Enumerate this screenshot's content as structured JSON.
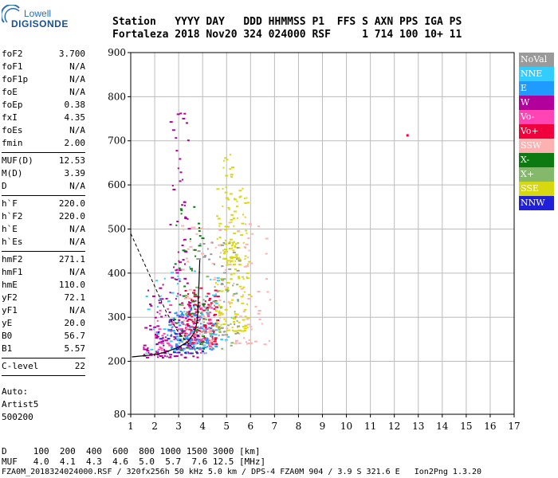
{
  "logo": {
    "line1": "Lowell",
    "line2": "DIGISONDE"
  },
  "header": {
    "row1": "Station   YYYY DAY   DDD HHMMSS P1  FFS S AXN PPS IGA PS",
    "row2": "Fortaleza 2018 Nov20 324 024000 RSF     1 714 100 10+ 11"
  },
  "params": [
    {
      "group": [
        {
          "k": "foF2",
          "v": "3.700"
        },
        {
          "k": "foF1",
          "v": "N/A"
        },
        {
          "k": "foF1p",
          "v": "N/A"
        },
        {
          "k": "foE",
          "v": "N/A"
        },
        {
          "k": "foEp",
          "v": "0.38"
        },
        {
          "k": "fxI",
          "v": "4.35"
        },
        {
          "k": "foEs",
          "v": "N/A"
        },
        {
          "k": "fmin",
          "v": "2.00"
        }
      ]
    },
    {
      "group": [
        {
          "k": "MUF(D)",
          "v": "12.53"
        },
        {
          "k": "M(D)",
          "v": "3.39"
        },
        {
          "k": "D",
          "v": "N/A"
        }
      ]
    },
    {
      "group": [
        {
          "k": "h`F",
          "v": "220.0"
        },
        {
          "k": "h`F2",
          "v": "220.0"
        },
        {
          "k": "h`E",
          "v": "N/A"
        },
        {
          "k": "h`Es",
          "v": "N/A"
        }
      ]
    },
    {
      "group": [
        {
          "k": "hmF2",
          "v": "271.1"
        },
        {
          "k": "hmF1",
          "v": "N/A"
        },
        {
          "k": "hmE",
          "v": "110.0"
        },
        {
          "k": "yF2",
          "v": "72.1"
        },
        {
          "k": "yF1",
          "v": "N/A"
        },
        {
          "k": "yE",
          "v": "20.0"
        },
        {
          "k": "B0",
          "v": "56.7"
        },
        {
          "k": "B1",
          "v": "5.57"
        }
      ]
    },
    {
      "group": [
        {
          "k": "C-level",
          "v": "22"
        }
      ]
    }
  ],
  "autoscale": {
    "line1": "Auto:",
    "line2": "Artist5",
    "line3": "500200"
  },
  "mufTable": {
    "row1": "D     100  200  400  600  800 1000 1500 3000 [km]",
    "row2": "MUF   4.0  4.1  4.3  4.6  5.0  5.7  7.6 12.5 [MHz]"
  },
  "footer": "FZA0M_2018324024000.RSF / 320fx256h 50 kHz 5.0 km / DPS-4 FZA0M 904 / 3.9 S 321.6 E   Ion2Png 1.3.20",
  "legend": [
    {
      "label": "NoVal",
      "color": "#9a9a9a"
    },
    {
      "label": "NNE",
      "color": "#33ccff"
    },
    {
      "label": "E",
      "color": "#1f9bff"
    },
    {
      "label": "W",
      "color": "#b2009c"
    },
    {
      "label": "Vo-",
      "color": "#ff44b4"
    },
    {
      "label": "Vo+",
      "color": "#f0003c"
    },
    {
      "label": "SSW",
      "color": "#ffb0b0"
    },
    {
      "label": "X-",
      "color": "#0c7a10"
    },
    {
      "label": "X+",
      "color": "#84b86a"
    },
    {
      "label": "SSE",
      "color": "#d8d810"
    },
    {
      "label": "NNW",
      "color": "#2020d8"
    }
  ],
  "chart_data": {
    "type": "scatter",
    "title": "",
    "xlabel": "",
    "ylabel": "",
    "xlim": [
      1,
      17
    ],
    "ylim": [
      80,
      900
    ],
    "x_ticks": [
      1,
      2,
      3,
      4,
      5,
      6,
      7,
      8,
      9,
      10,
      11,
      12,
      13,
      14,
      15,
      16,
      17
    ],
    "y_ticks": [
      80,
      200,
      300,
      400,
      500,
      600,
      700,
      800,
      900
    ],
    "grid": true,
    "legend_placement": "right",
    "clusters": [
      {
        "color": "#b2009c",
        "xmin": 1.5,
        "xmax": 3.8,
        "ymin": 210,
        "ymax": 380,
        "n": 140
      },
      {
        "color": "#f0003c",
        "xmin": 3.2,
        "xmax": 4.6,
        "ymin": 240,
        "ymax": 370,
        "n": 140
      },
      {
        "color": "#ff44b4",
        "xmin": 2.0,
        "xmax": 4.4,
        "ymin": 220,
        "ymax": 330,
        "n": 90
      },
      {
        "color": "#1f9bff",
        "xmin": 2.5,
        "xmax": 4.5,
        "ymin": 230,
        "ymax": 320,
        "n": 90
      },
      {
        "color": "#33ccff",
        "xmin": 1.6,
        "xmax": 5.2,
        "ymin": 220,
        "ymax": 420,
        "n": 60
      },
      {
        "color": "#d8d810",
        "xmin": 4.5,
        "xmax": 5.9,
        "ymin": 270,
        "ymax": 600,
        "n": 150
      },
      {
        "color": "#ffb0b0",
        "xmin": 3.0,
        "xmax": 6.8,
        "ymin": 240,
        "ymax": 520,
        "n": 120
      },
      {
        "color": "#0c7a10",
        "xmin": 2.7,
        "xmax": 4.0,
        "ymin": 220,
        "ymax": 560,
        "n": 50
      },
      {
        "color": "#84b86a",
        "xmin": 3.0,
        "xmax": 5.5,
        "ymin": 230,
        "ymax": 400,
        "n": 40
      },
      {
        "color": "#9a9a9a",
        "xmin": 3.5,
        "xmax": 5.5,
        "ymin": 260,
        "ymax": 480,
        "n": 60
      },
      {
        "color": "#2020d8",
        "xmin": 2.0,
        "xmax": 4.0,
        "ymin": 220,
        "ymax": 300,
        "n": 25
      },
      {
        "color": "#b2009c",
        "xmin": 2.6,
        "xmax": 3.4,
        "ymin": 380,
        "ymax": 800,
        "n": 45
      },
      {
        "color": "#d8d810",
        "xmin": 4.8,
        "xmax": 5.4,
        "ymin": 420,
        "ymax": 680,
        "n": 50
      }
    ],
    "profile_solid": [
      [
        1.05,
        210
      ],
      [
        1.8,
        214
      ],
      [
        2.4,
        220
      ],
      [
        3.0,
        232
      ],
      [
        3.4,
        245
      ],
      [
        3.65,
        265
      ],
      [
        3.75,
        285
      ],
      [
        3.8,
        310
      ],
      [
        3.82,
        345
      ],
      [
        3.85,
        380
      ],
      [
        3.88,
        430
      ]
    ],
    "profile_dashed": [
      [
        1.0,
        490
      ],
      [
        1.5,
        430
      ],
      [
        2.0,
        370
      ],
      [
        2.5,
        310
      ],
      [
        3.0,
        265
      ],
      [
        3.5,
        235
      ],
      [
        3.7,
        225
      ]
    ],
    "outliers": [
      {
        "x": 12.5,
        "y": 715,
        "color": "#f0003c"
      }
    ]
  }
}
